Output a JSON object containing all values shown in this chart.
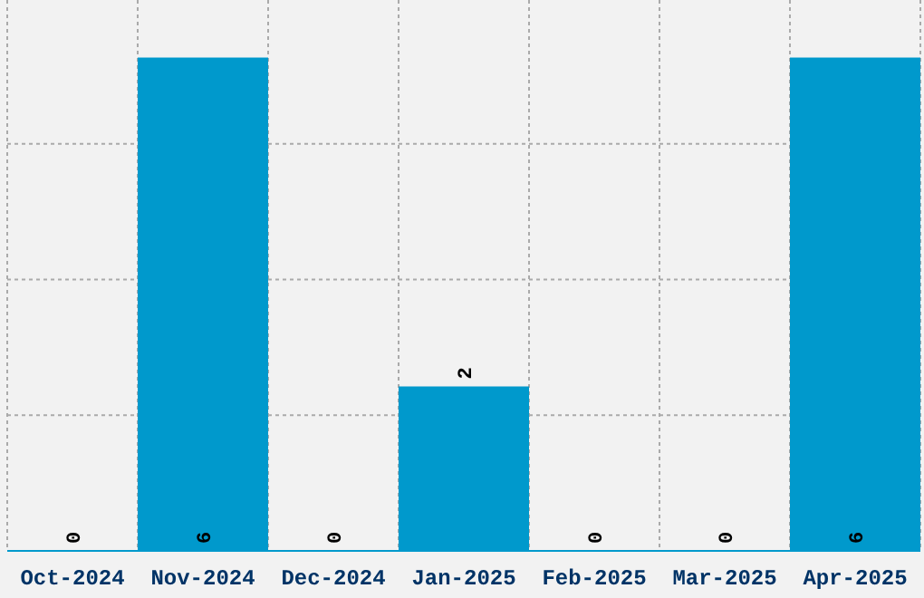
{
  "chart_data": {
    "type": "bar",
    "categories": [
      "Oct-2024",
      "Nov-2024",
      "Dec-2024",
      "Jan-2025",
      "Feb-2025",
      "Mar-2025",
      "Apr-2025"
    ],
    "values": [
      0,
      6,
      0,
      2,
      0,
      0,
      6
    ],
    "color": "#0099cc",
    "data_labels": true,
    "grid": true,
    "tick_labels": "x",
    "ylim": [
      0,
      6.7
    ],
    "yticks": [
      {
        "value": 1.65,
        "label": null
      },
      {
        "value": 3.3,
        "label": null
      },
      {
        "value": 4.95,
        "label": null
      }
    ]
  }
}
